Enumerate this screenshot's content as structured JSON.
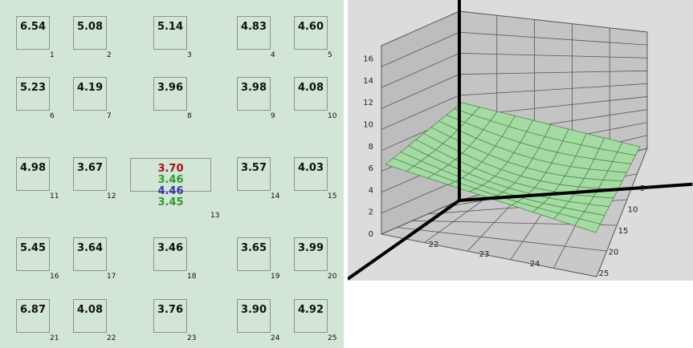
{
  "cells": [
    {
      "values": [
        "6.54"
      ],
      "index": "1"
    },
    {
      "values": [
        "5.08"
      ],
      "index": "2"
    },
    {
      "values": [
        "5.14"
      ],
      "index": "3"
    },
    {
      "values": [
        "4.83"
      ],
      "index": "4"
    },
    {
      "values": [
        "4.60"
      ],
      "index": "5"
    },
    {
      "values": [
        "5.23"
      ],
      "index": "6"
    },
    {
      "values": [
        "4.19"
      ],
      "index": "7"
    },
    {
      "values": [
        "3.96"
      ],
      "index": "8"
    },
    {
      "values": [
        "3.98"
      ],
      "index": "9"
    },
    {
      "values": [
        "4.08"
      ],
      "index": "10"
    },
    {
      "values": [
        "4.98"
      ],
      "index": "11"
    },
    {
      "values": [
        "3.67"
      ],
      "index": "12"
    },
    {
      "values": [
        "3.70",
        "3.46",
        "4.46",
        "3.45"
      ],
      "colors": [
        "#a01418",
        "#2f9a34",
        "#3434a4",
        "#2f9a34"
      ],
      "index": "13"
    },
    {
      "values": [
        "3.57"
      ],
      "index": "14"
    },
    {
      "values": [
        "4.03"
      ],
      "index": "15"
    },
    {
      "values": [
        "5.45"
      ],
      "index": "16"
    },
    {
      "values": [
        "3.64"
      ],
      "index": "17"
    },
    {
      "values": [
        "3.46"
      ],
      "index": "18"
    },
    {
      "values": [
        "3.65"
      ],
      "index": "19"
    },
    {
      "values": [
        "3.99"
      ],
      "index": "20"
    },
    {
      "values": [
        "6.87"
      ],
      "index": "21"
    },
    {
      "values": [
        "4.08"
      ],
      "index": "22"
    },
    {
      "values": [
        "3.76"
      ],
      "index": "23"
    },
    {
      "values": [
        "3.90"
      ],
      "index": "24"
    },
    {
      "values": [
        "4.92"
      ],
      "index": "25"
    }
  ],
  "plot": {
    "z_ticks": [
      "0",
      "2",
      "4",
      "6",
      "8",
      "10",
      "12",
      "14",
      "16"
    ],
    "x_ticks": [
      "22",
      "23",
      "24"
    ],
    "y_ticks": [
      "5",
      "10",
      "15",
      "20",
      "25"
    ]
  }
}
